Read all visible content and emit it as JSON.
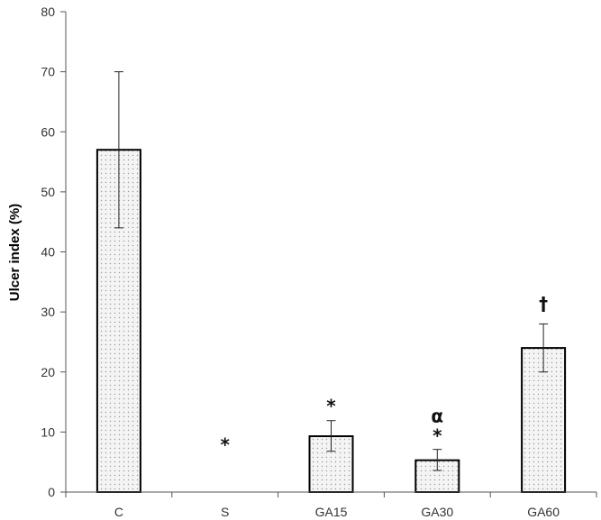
{
  "chart_data": {
    "type": "bar",
    "title": "",
    "xlabel": "",
    "ylabel": "Ulcer index (%)",
    "ylim": [
      0,
      80
    ],
    "yticks": [
      0,
      10,
      20,
      30,
      40,
      50,
      60,
      70,
      80
    ],
    "grid": false,
    "legend": "none",
    "categories": [
      "C",
      "S",
      "GA15",
      "GA30",
      "GA60"
    ],
    "values": [
      57,
      0,
      9.3,
      5.3,
      24
    ],
    "error_low": [
      44,
      0,
      6.8,
      3.6,
      20
    ],
    "error_high": [
      70,
      0,
      11.9,
      7.1,
      28
    ],
    "annotations": [
      {
        "category": "S",
        "text": "*",
        "y": 8
      },
      {
        "category": "GA15",
        "text": "*",
        "y": 14.5
      },
      {
        "category": "GA30",
        "text": "*",
        "y": 9.5
      },
      {
        "category": "GA30",
        "text": "α",
        "y": 12.8
      },
      {
        "category": "GA60",
        "text": "†",
        "y": 31.5
      }
    ],
    "bar_fill": "#f4f4f4",
    "bar_stroke": "#000000",
    "dot_color": "#9a9a9a"
  }
}
